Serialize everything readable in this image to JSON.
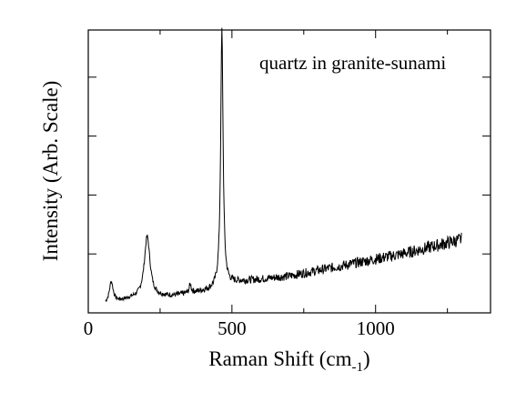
{
  "chart_data": {
    "type": "line",
    "annotation": "quartz in granite-sunami",
    "xlabel": "Raman Shift (cm",
    "xlabel_sub": "-1",
    "xlabel_end": ")",
    "ylabel": "Intensity (Arb. Scale)",
    "xlim": [
      0,
      1400
    ],
    "ylim": [
      0,
      1
    ],
    "x_ticks": [
      0,
      500,
      1000
    ],
    "x_tick_labels": [
      "0",
      "500",
      "1000"
    ],
    "y_ticks_count": 4,
    "grid": false,
    "series": [
      {
        "peaks": [
          {
            "x": 80,
            "y": 0.11
          },
          {
            "x": 205,
            "y": 0.27
          },
          {
            "x": 355,
            "y": 0.1
          },
          {
            "x": 465,
            "y": 1.0
          }
        ],
        "baseline": [
          {
            "x": 60,
            "y": 0.03
          },
          {
            "x": 150,
            "y": 0.05
          },
          {
            "x": 300,
            "y": 0.06
          },
          {
            "x": 420,
            "y": 0.08
          },
          {
            "x": 520,
            "y": 0.11
          },
          {
            "x": 700,
            "y": 0.13
          },
          {
            "x": 900,
            "y": 0.17
          },
          {
            "x": 1100,
            "y": 0.21
          },
          {
            "x": 1300,
            "y": 0.26
          }
        ]
      }
    ]
  }
}
